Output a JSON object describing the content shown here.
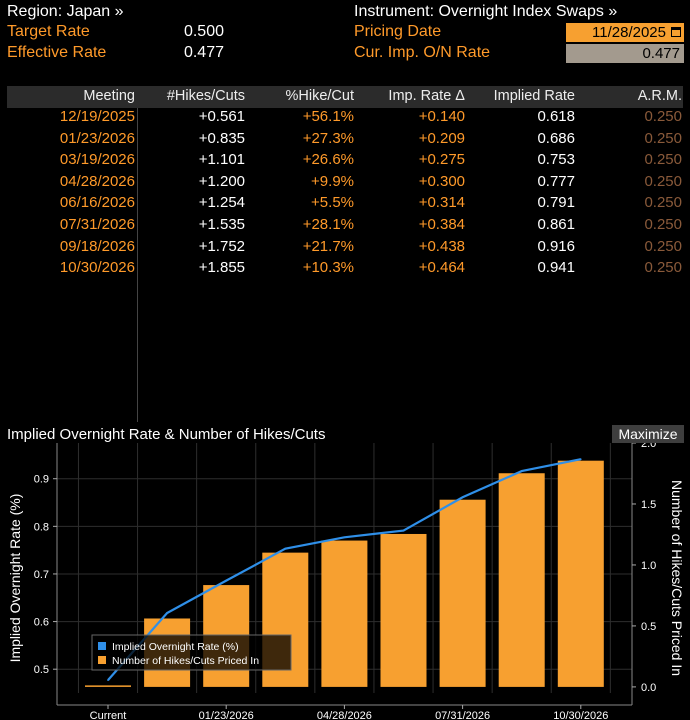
{
  "header": {
    "region_label": "Region: Japan »",
    "instrument_label": "Instrument: Overnight Index Swaps »",
    "target_rate_label": "Target Rate",
    "target_rate_value": "0.500",
    "effective_rate_label": "Effective Rate",
    "effective_rate_value": "0.477",
    "pricing_date_label": "Pricing Date",
    "pricing_date_value": "11/28/2025",
    "cur_imp_label": "Cur. Imp. O/N Rate",
    "cur_imp_value": "0.477"
  },
  "table": {
    "columns": [
      "Meeting",
      "#Hikes/Cuts",
      "%Hike/Cut",
      "Imp. Rate Δ",
      "Implied Rate",
      "A.R.M."
    ],
    "rows": [
      [
        "12/19/2025",
        "+0.561",
        "+56.1%",
        "+0.140",
        "0.618",
        "0.250"
      ],
      [
        "01/23/2026",
        "+0.835",
        "+27.3%",
        "+0.209",
        "0.686",
        "0.250"
      ],
      [
        "03/19/2026",
        "+1.101",
        "+26.6%",
        "+0.275",
        "0.753",
        "0.250"
      ],
      [
        "04/28/2026",
        "+1.200",
        "+9.9%",
        "+0.300",
        "0.777",
        "0.250"
      ],
      [
        "06/16/2026",
        "+1.254",
        "+5.5%",
        "+0.314",
        "0.791",
        "0.250"
      ],
      [
        "07/31/2026",
        "+1.535",
        "+28.1%",
        "+0.384",
        "0.861",
        "0.250"
      ],
      [
        "09/18/2026",
        "+1.752",
        "+21.7%",
        "+0.438",
        "0.916",
        "0.250"
      ],
      [
        "10/30/2026",
        "+1.855",
        "+10.3%",
        "+0.464",
        "0.941",
        "0.250"
      ]
    ]
  },
  "chart": {
    "title": "Implied Overnight Rate & Number of Hikes/Cuts",
    "maximize_label": "Maximize"
  },
  "chart_data": {
    "type": "bar",
    "categories": [
      "Current",
      "12/19/2025",
      "01/23/2026",
      "03/19/2026",
      "04/28/2026",
      "06/16/2026",
      "07/31/2026",
      "09/18/2026",
      "10/30/2026"
    ],
    "x_tick_labels": [
      "Current",
      "01/23/2026",
      "04/28/2026",
      "07/31/2026",
      "10/30/2026"
    ],
    "series": [
      {
        "name": "Implied Overnight Rate (%)",
        "kind": "line",
        "axis": "left",
        "color": "#2f8fe8",
        "values": [
          0.477,
          0.618,
          0.686,
          0.753,
          0.777,
          0.791,
          0.861,
          0.916,
          0.941
        ]
      },
      {
        "name": "Number of Hikes/Cuts Priced In",
        "kind": "bar",
        "axis": "right",
        "color": "#f7a030",
        "values": [
          0.0,
          0.561,
          0.835,
          1.101,
          1.2,
          1.254,
          1.535,
          1.752,
          1.855
        ]
      }
    ],
    "ylabel": "Implied Overnight Rate (%)",
    "y2label": "Number of Hikes/Cuts Priced In",
    "ylim": [
      0.45,
      0.975
    ],
    "y_ticks": [
      0.5,
      0.6,
      0.7,
      0.8,
      0.9
    ],
    "y2lim": [
      -0.05,
      2.0
    ],
    "y2_ticks": [
      0.0,
      0.5,
      1.0,
      1.5,
      2.0
    ],
    "legend_position": "bottom-left",
    "grid": true
  }
}
